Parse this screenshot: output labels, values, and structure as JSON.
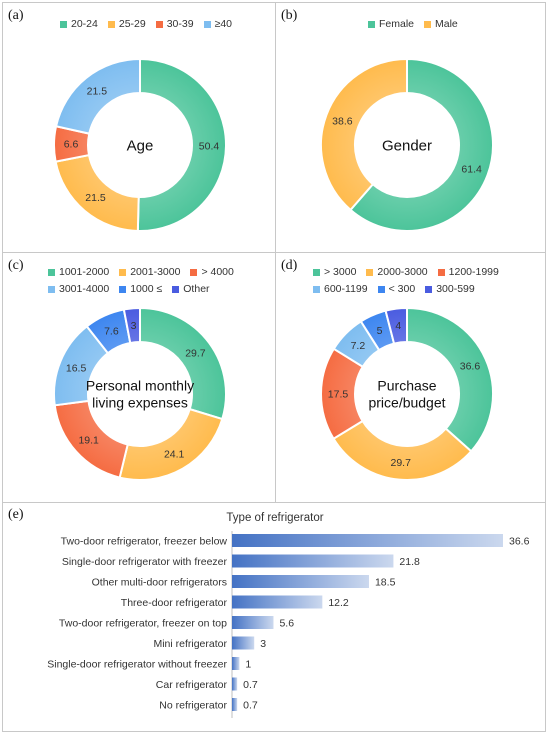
{
  "panels": {
    "a": "(a)",
    "b": "(b)",
    "c": "(c)",
    "d": "(d)",
    "e": "(e)"
  },
  "chart_data": [
    {
      "type": "pie",
      "panel": "a",
      "center_label": "Age",
      "categories": [
        "20-24",
        "25-29",
        "30-39",
        "≥40"
      ],
      "values": [
        50.4,
        21.5,
        6.6,
        21.5
      ],
      "colors": [
        "#4cc49a",
        "#ffbb4d",
        "#f56c42",
        "#7ebdf0"
      ]
    },
    {
      "type": "pie",
      "panel": "b",
      "center_label": "Gender",
      "categories": [
        "Female",
        "Male"
      ],
      "values": [
        61.4,
        38.6
      ],
      "colors": [
        "#4cc49a",
        "#ffbb4d"
      ]
    },
    {
      "type": "pie",
      "panel": "c",
      "center_label": "Personal monthly living expenses",
      "center_lines": [
        "Personal monthly",
        "living expenses"
      ],
      "categories": [
        "1001-2000",
        "2001-3000",
        "> 4000",
        "3001-4000",
        "1000 ≤",
        "Other"
      ],
      "values": [
        29.7,
        24.1,
        19.1,
        16.5,
        7.6,
        3
      ],
      "colors": [
        "#4cc49a",
        "#ffbb4d",
        "#f56c42",
        "#7ebdf0",
        "#3d86f0",
        "#4a5ce0"
      ]
    },
    {
      "type": "pie",
      "panel": "d",
      "center_label": "Purchase price/budget",
      "center_lines": [
        "Purchase",
        "price/budget"
      ],
      "categories": [
        "> 3000",
        "2000-3000",
        "1200-1999",
        "600-1199",
        "< 300",
        "300-599"
      ],
      "values": [
        36.6,
        29.7,
        17.5,
        7.2,
        5,
        4
      ],
      "colors": [
        "#4cc49a",
        "#ffbb4d",
        "#f56c42",
        "#7ebdf0",
        "#3d86f0",
        "#4a5ce0"
      ]
    },
    {
      "type": "bar",
      "panel": "e",
      "orientation": "horizontal",
      "title": "Type of refrigerator",
      "categories": [
        "Two-door refrigerator, freezer below",
        "Single-door refrigerator with freezer",
        "Other multi-door refrigerators",
        "Three-door refrigerator",
        "Two-door refrigerator, freezer on top",
        "Mini refrigerator",
        "Single-door refrigerator without freezer",
        "Car refrigerator",
        "No refrigerator"
      ],
      "values": [
        36.6,
        21.8,
        18.5,
        12.2,
        5.6,
        3,
        1,
        0.7,
        0.7
      ],
      "color": "#4472c4"
    }
  ]
}
